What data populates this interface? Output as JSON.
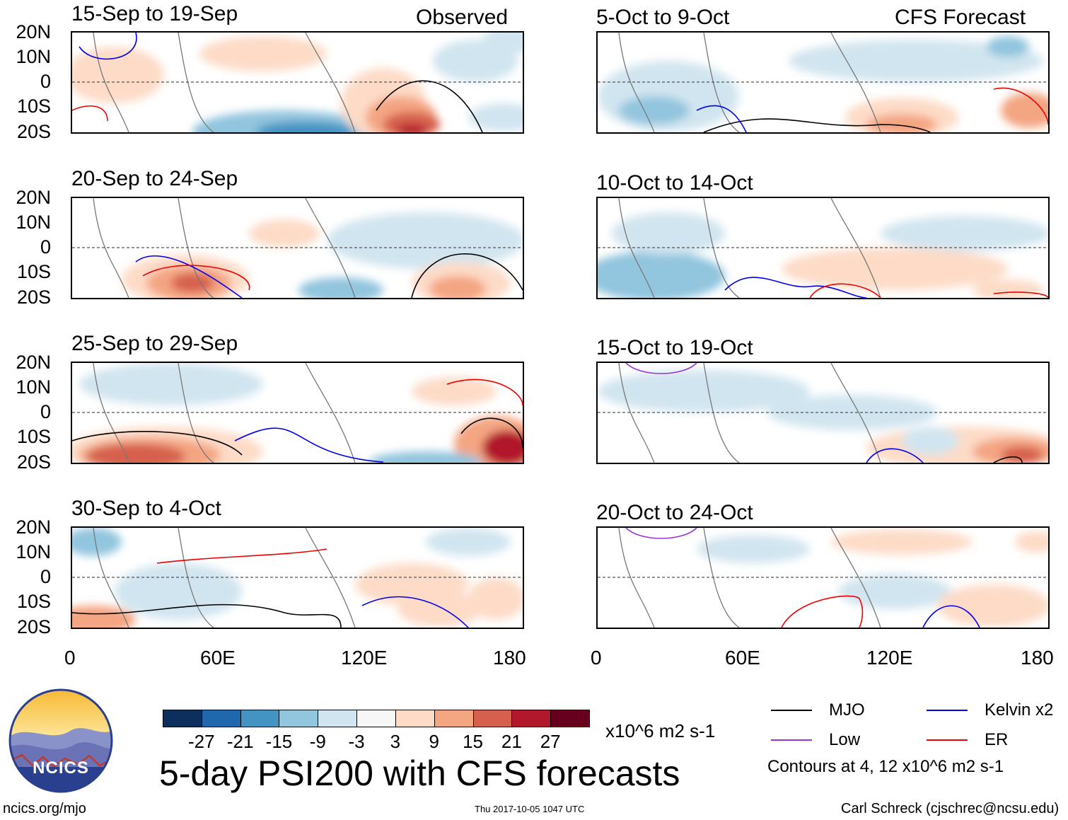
{
  "header": {
    "left_label": "Observed",
    "right_label": "CFS Forecast"
  },
  "panels_observed": [
    {
      "period": "15-Sep to 19-Sep"
    },
    {
      "period": "20-Sep to 24-Sep"
    },
    {
      "period": "25-Sep to 29-Sep"
    },
    {
      "period": "30-Sep to 4-Oct"
    }
  ],
  "panels_forecast": [
    {
      "period": "5-Oct to 9-Oct"
    },
    {
      "period": "10-Oct to 14-Oct"
    },
    {
      "period": "15-Oct to 19-Oct"
    },
    {
      "period": "20-Oct to 24-Oct"
    }
  ],
  "axes": {
    "lat_labels": [
      "20N",
      "10N",
      "0",
      "10S",
      "20S"
    ],
    "lon_labels": [
      "0",
      "60E",
      "120E",
      "180"
    ]
  },
  "colorbar": {
    "colors": [
      "#0c2f5e",
      "#1f68ad",
      "#4393c3",
      "#92c5de",
      "#d1e5f0",
      "#f7f7f7",
      "#fddbc7",
      "#f4a582",
      "#d6604d",
      "#b2182b",
      "#67001f"
    ],
    "tick_labels": [
      "-27",
      "-21",
      "-15",
      "-9",
      "-3",
      "3",
      "9",
      "15",
      "21",
      "27"
    ],
    "units": "x10^6 m2 s-1"
  },
  "title": "5-day PSI200 with CFS forecasts",
  "legend": {
    "items": [
      {
        "label": "MJO",
        "color": "#000000"
      },
      {
        "label": "Kelvin x2",
        "color": "#0000ee"
      },
      {
        "label": "Low",
        "color": "#9933dd"
      },
      {
        "label": "ER",
        "color": "#ee0000"
      }
    ],
    "note": "Contours at 4, 12 x10^6 m2 s-1"
  },
  "logo": {
    "text": "NCICS"
  },
  "footer": {
    "url": "ncics.org/mjo",
    "timestamp": "Thu 2017-10-05 1047 UTC",
    "author": "Carl Schreck (cjschrec@ncsu.edu)"
  }
}
